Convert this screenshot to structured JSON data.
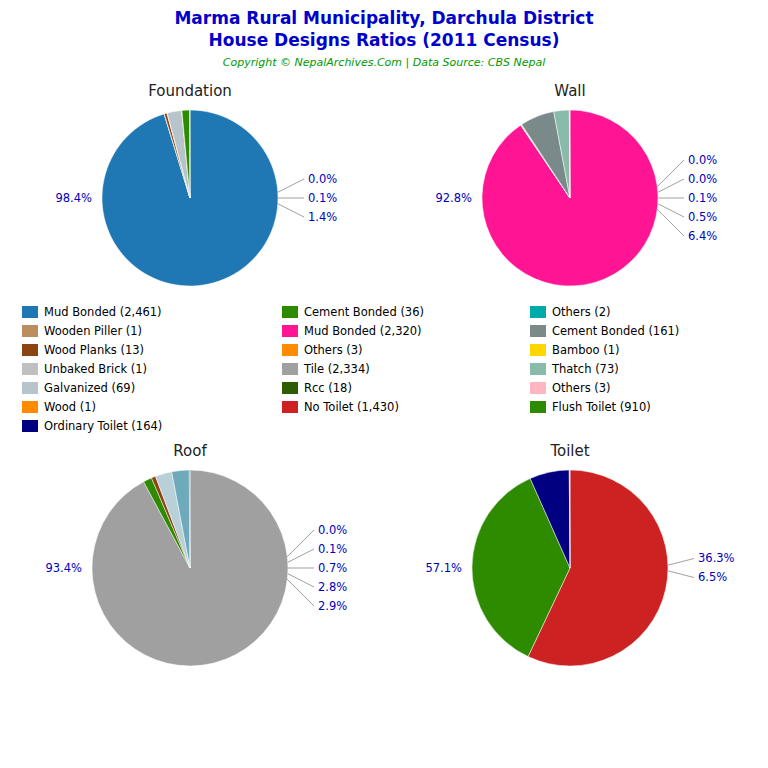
{
  "title": "Marma Rural Municipality, Darchula District",
  "subtitle": "House Designs Ratios (2011 Census)",
  "annotations": [
    "Copyright © NepalArchives.Com | Data Source: CBS Nepal"
  ],
  "series": [
    {
      "name": "Mud Bonded (2,461)",
      "color": "#1F77B4"
    },
    {
      "name": "Cement Bonded (36)",
      "color": "#2E8B00"
    },
    {
      "name": "Others (2)",
      "color": "#00AAAA"
    },
    {
      "name": "Wooden Piller (1)",
      "color": "#BC8D5E"
    },
    {
      "name": "Mud Bonded (2,320)",
      "color": "#FF1493"
    },
    {
      "name": "Cement Bonded (161)",
      "color": "#7A8A8A"
    },
    {
      "name": "Wood Planks (13)",
      "color": "#8B4513"
    },
    {
      "name": "Others (3)",
      "color": "#FF8C00"
    },
    {
      "name": "Bamboo (1)",
      "color": "#FFD700"
    },
    {
      "name": "Unbaked Brick (1)",
      "color": "#C0C0C0"
    },
    {
      "name": "Tile (2,334)",
      "color": "#A0A0A0"
    },
    {
      "name": "Thatch (73)",
      "color": "#88BBAA"
    },
    {
      "name": "Galvanized (69)",
      "color": "#B8C4CC"
    },
    {
      "name": "Rcc (18)",
      "color": "#2E5C00"
    },
    {
      "name": "Others (3)",
      "color": "#FFB6C1"
    },
    {
      "name": "Wood (1)",
      "color": "#FF8C00"
    },
    {
      "name": "No Toilet (1,430)",
      "color": "#CC2222"
    },
    {
      "name": "Flush Toilet (910)",
      "color": "#2E8B00"
    },
    {
      "name": "Ordinary Toilet (164)",
      "color": "#000080"
    }
  ],
  "chart_data": [
    {
      "type": "pie",
      "title": "Foundation",
      "values": [
        2461,
        1,
        13,
        1,
        69,
        1,
        36,
        2
      ],
      "colors": [
        "#1F77B4",
        "#BC8D5E",
        "#8B4513",
        "#C0C0C0",
        "#B8C4CC",
        "#FF8C00",
        "#2E8B00",
        "#00AAAA"
      ],
      "annotations": [
        "98.4%",
        "0.0%",
        "0.1%",
        "1.4%"
      ]
    },
    {
      "type": "pie",
      "title": "Wall",
      "values": [
        2320,
        2,
        1,
        3,
        161,
        73,
        3
      ],
      "colors": [
        "#FF1493",
        "#00AAAA",
        "#FFD700",
        "#FF8C00",
        "#7A8A8A",
        "#88BBAA",
        "#FFB6C1"
      ],
      "annotations": [
        "92.8%",
        "0.0%",
        "0.0%",
        "0.1%",
        "0.5%",
        "6.4%"
      ]
    },
    {
      "type": "pie",
      "title": "Roof",
      "values": [
        2334,
        36,
        18,
        69,
        73,
        3
      ],
      "colors": [
        "#A0A0A0",
        "#2E8B00",
        "#8B4513",
        "#B8D0D8",
        "#6EAABB",
        "#CC3333"
      ],
      "annotations": [
        "93.4%",
        "0.0%",
        "0.1%",
        "0.7%",
        "2.8%",
        "2.9%"
      ]
    },
    {
      "type": "pie",
      "title": "Toilet",
      "values": [
        1430,
        910,
        164,
        3
      ],
      "colors": [
        "#CC2222",
        "#2E8B00",
        "#000080",
        "#FFB6C1"
      ],
      "annotations": [
        "57.1%",
        "36.3%",
        "6.5%"
      ]
    }
  ]
}
